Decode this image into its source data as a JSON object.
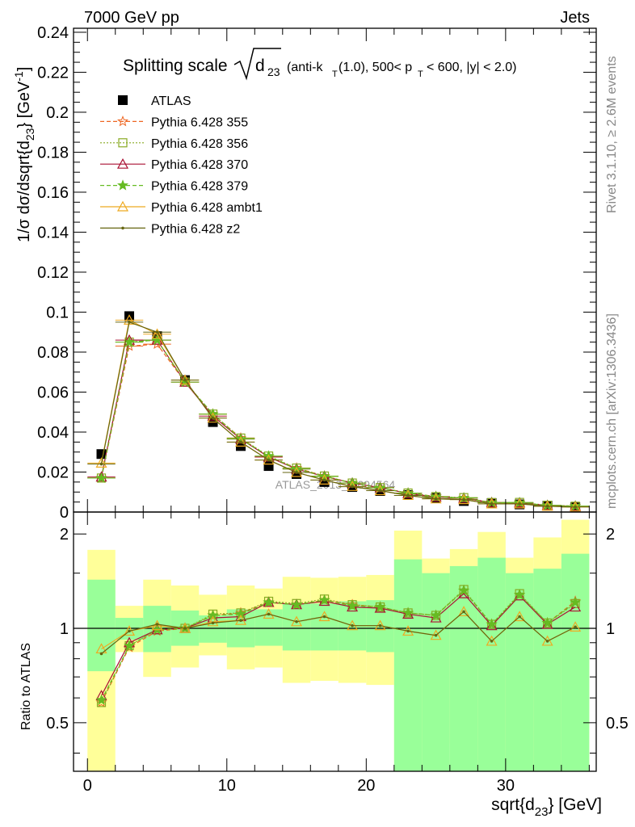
{
  "header": {
    "left": "7000 GeV pp",
    "right": "Jets"
  },
  "side_text": {
    "rivet": "Rivet 3.1.10, ≥ 2.6M events",
    "mcplots": "mcplots.cern.ch [arXiv:1306.3436]"
  },
  "watermark": "ATLAS_2013_I1094564",
  "colors": {
    "data": "#000000",
    "p355": "#ee6622",
    "p356": "#88aa22",
    "p370": "#aa1133",
    "p379": "#66bb22",
    "ambt1": "#eeaa22",
    "z2": "#666611",
    "band_inner": "#99ff99",
    "band_outer": "#ffff99"
  },
  "chart_data": [
    {
      "type": "scatter",
      "panel": "main",
      "title_prefix": "Splitting scale",
      "title_sub": "23",
      "title_suffix": "(anti-k",
      "title_suffix_sub": "T",
      "title_suffix2": "(1.0), 500< p",
      "title_suffix2_sub": "T",
      "title_suffix3": "< 600, |y| < 2.0)",
      "ylabel": "1/σ dσ/dsqrt{d",
      "ylabel_sub": "23",
      "ylabel_tail": "} [GeV",
      "ylabel_sup": "-1",
      "ylabel_end": "]",
      "xlim": [
        -1,
        36.5
      ],
      "ylim": [
        0,
        0.242
      ],
      "yticks": [
        0,
        0.02,
        0.04,
        0.06,
        0.08,
        0.1,
        0.12,
        0.14,
        0.16,
        0.18,
        0.2,
        0.22,
        0.24
      ],
      "ytick_labels": [
        "0",
        "0.02",
        "0.04",
        "0.06",
        "0.08",
        "0.1",
        "0.12",
        "0.14",
        "0.16",
        "0.18",
        "0.2",
        "0.22",
        "0.24"
      ],
      "legend_position": "top-left",
      "x": [
        1,
        3,
        5,
        7,
        9,
        11,
        13,
        15,
        17,
        19,
        21,
        23,
        25,
        27,
        29,
        31,
        33,
        35
      ],
      "series": [
        {
          "name": "ATLAS",
          "key": "data",
          "style": "data",
          "values": [
            0.029,
            0.098,
            0.088,
            0.066,
            0.045,
            0.033,
            0.023,
            0.019,
            0.015,
            0.0125,
            0.0105,
            0.0085,
            0.007,
            0.0055,
            0.0045,
            0.0038,
            0.0032,
            0.0025
          ]
        },
        {
          "name": "Pythia 6.428 355",
          "key": "p355",
          "style": "star-dash",
          "values": [
            0.017,
            0.083,
            0.084,
            0.065,
            0.049,
            0.037,
            0.0275,
            0.022,
            0.018,
            0.0145,
            0.0122,
            0.0095,
            0.0078,
            0.007,
            0.0048,
            0.0045,
            0.0033,
            0.003
          ]
        },
        {
          "name": "Pythia 6.428 356",
          "key": "p356",
          "style": "square-dot",
          "values": [
            0.017,
            0.085,
            0.086,
            0.065,
            0.049,
            0.037,
            0.028,
            0.022,
            0.018,
            0.0145,
            0.0122,
            0.0095,
            0.0077,
            0.0072,
            0.0047,
            0.0048,
            0.0034,
            0.0029
          ]
        },
        {
          "name": "Pythia 6.428 370",
          "key": "p370",
          "style": "triangle-solid",
          "values": [
            0.0175,
            0.086,
            0.086,
            0.065,
            0.048,
            0.0365,
            0.0275,
            0.0215,
            0.0178,
            0.0145,
            0.0122,
            0.0093,
            0.0075,
            0.0069,
            0.0047,
            0.0046,
            0.0033,
            0.0029
          ]
        },
        {
          "name": "Pythia 6.428 379",
          "key": "p379",
          "style": "star-dash",
          "values": [
            0.017,
            0.085,
            0.086,
            0.065,
            0.049,
            0.0365,
            0.028,
            0.0215,
            0.0178,
            0.0145,
            0.0121,
            0.0094,
            0.0077,
            0.007,
            0.0047,
            0.0047,
            0.0033,
            0.003
          ]
        },
        {
          "name": "Pythia 6.428 ambt1",
          "key": "ambt1",
          "style": "triangle-solid",
          "values": [
            0.0245,
            0.096,
            0.089,
            0.066,
            0.047,
            0.035,
            0.026,
            0.0198,
            0.016,
            0.0128,
            0.0107,
            0.0083,
            0.0066,
            0.0062,
            0.0041,
            0.0041,
            0.0029,
            0.0025
          ]
        },
        {
          "name": "Pythia 6.428 z2",
          "key": "z2",
          "style": "dot-solid",
          "values": [
            0.024,
            0.095,
            0.09,
            0.066,
            0.047,
            0.035,
            0.026,
            0.0198,
            0.016,
            0.0127,
            0.0107,
            0.0083,
            0.0066,
            0.0062,
            0.0041,
            0.0041,
            0.0029,
            0.0025
          ]
        }
      ]
    },
    {
      "type": "line",
      "panel": "ratio",
      "ylabel": "Ratio to ATLAS",
      "xlabel": "sqrt{d",
      "xlabel_sub": "23",
      "xlabel_tail": "} [GeV]",
      "log_y": true,
      "xlim": [
        -1,
        36.5
      ],
      "ylim": [
        0.35,
        2.35
      ],
      "xticks": [
        0,
        10,
        20,
        30
      ],
      "xtick_labels": [
        "0",
        "10",
        "20",
        "30"
      ],
      "yticks": [
        0.5,
        1,
        2
      ],
      "ytick_labels": [
        "0.5",
        "1",
        "2"
      ],
      "bin_edges": [
        0,
        2,
        4,
        6,
        8,
        10,
        12,
        14,
        16,
        18,
        20,
        22,
        24,
        26,
        28,
        30,
        32,
        34,
        36
      ],
      "band_inner": [
        [
          0.73,
          1.43
        ],
        [
          0.92,
          1.08
        ],
        [
          0.84,
          1.18
        ],
        [
          0.88,
          1.14
        ],
        [
          0.9,
          1.1
        ],
        [
          0.87,
          1.15
        ],
        [
          0.88,
          1.15
        ],
        [
          0.85,
          1.2
        ],
        [
          0.85,
          1.2
        ],
        [
          0.85,
          1.22
        ],
        [
          0.84,
          1.23
        ],
        [
          0.35,
          1.66
        ],
        [
          0.35,
          1.5
        ],
        [
          0.35,
          1.58
        ],
        [
          0.35,
          1.68
        ],
        [
          0.35,
          1.5
        ],
        [
          0.35,
          1.55
        ],
        [
          0.35,
          1.73
        ]
      ],
      "band_outer": [
        [
          0.35,
          1.78
        ],
        [
          0.84,
          1.18
        ],
        [
          0.7,
          1.43
        ],
        [
          0.75,
          1.37
        ],
        [
          0.82,
          1.28
        ],
        [
          0.74,
          1.37
        ],
        [
          0.75,
          1.34
        ],
        [
          0.67,
          1.46
        ],
        [
          0.68,
          1.45
        ],
        [
          0.67,
          1.46
        ],
        [
          0.66,
          1.48
        ],
        [
          0.35,
          2.05
        ],
        [
          0.43,
          1.67
        ],
        [
          0.35,
          1.79
        ],
        [
          0.35,
          2.03
        ],
        [
          0.35,
          1.68
        ],
        [
          0.35,
          1.95
        ],
        [
          0.35,
          2.22
        ]
      ],
      "x": [
        1,
        3,
        5,
        7,
        9,
        11,
        13,
        15,
        17,
        19,
        21,
        23,
        25,
        27,
        29,
        31,
        33,
        35
      ],
      "series": [
        {
          "key": "p355",
          "style": "star-dash",
          "values": [
            0.58,
            0.87,
            0.98,
            1.0,
            1.1,
            1.12,
            1.21,
            1.19,
            1.23,
            1.19,
            1.17,
            1.12,
            1.1,
            1.32,
            1.03,
            1.28,
            1.04,
            1.22
          ]
        },
        {
          "key": "p356",
          "style": "square-dot",
          "values": [
            0.58,
            0.88,
            0.99,
            1.0,
            1.11,
            1.12,
            1.22,
            1.2,
            1.24,
            1.19,
            1.17,
            1.12,
            1.1,
            1.33,
            1.03,
            1.29,
            1.04,
            1.2
          ]
        },
        {
          "key": "p370",
          "style": "triangle-solid",
          "values": [
            0.61,
            0.9,
            0.99,
            1.0,
            1.08,
            1.09,
            1.21,
            1.19,
            1.22,
            1.17,
            1.16,
            1.11,
            1.08,
            1.29,
            1.02,
            1.27,
            1.03,
            1.17
          ]
        },
        {
          "key": "p379",
          "style": "star-dash",
          "values": [
            0.59,
            0.88,
            0.99,
            1.0,
            1.1,
            1.11,
            1.21,
            1.19,
            1.23,
            1.18,
            1.17,
            1.12,
            1.1,
            1.32,
            1.03,
            1.28,
            1.04,
            1.21
          ]
        },
        {
          "key": "ambt1",
          "style": "triangle-solid",
          "values": [
            0.86,
            0.98,
            1.02,
            1.0,
            1.05,
            1.06,
            1.11,
            1.05,
            1.09,
            1.02,
            1.02,
            0.98,
            0.95,
            1.13,
            0.91,
            1.09,
            0.91,
            1.01
          ]
        },
        {
          "key": "z2",
          "style": "dot-solid",
          "values": [
            0.83,
            0.98,
            1.03,
            1.0,
            1.04,
            1.06,
            1.11,
            1.05,
            1.09,
            1.02,
            1.02,
            0.98,
            0.95,
            1.13,
            0.91,
            1.09,
            0.91,
            1.01
          ]
        }
      ]
    }
  ]
}
